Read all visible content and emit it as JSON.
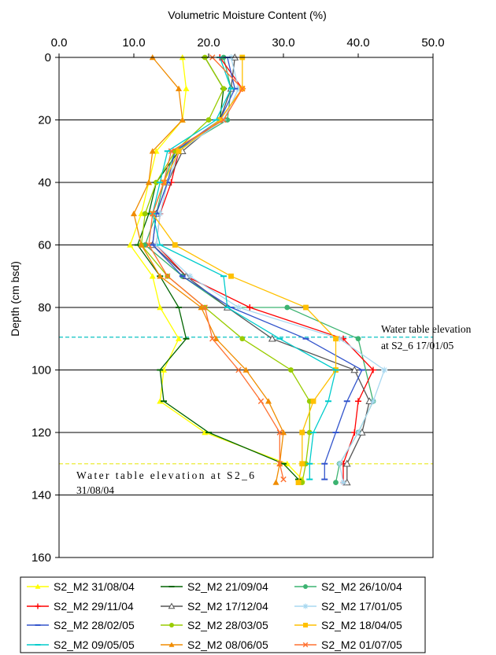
{
  "chart_data": {
    "type": "line",
    "title": "",
    "xlabel": "Volumetric Moisture Content (%)",
    "ylabel": "Depth (cm bsd)",
    "xlim": [
      0,
      50
    ],
    "ylim": [
      0,
      160
    ],
    "y_inverted": true,
    "x_axis_position": "top",
    "x_ticks": [
      "0.0",
      "10.0",
      "20.0",
      "30.0",
      "40.0",
      "50.0"
    ],
    "y_ticks": [
      "0",
      "20",
      "40",
      "60",
      "80",
      "100",
      "120",
      "140",
      "160"
    ],
    "grid": "horizontal",
    "legend_position": "bottom",
    "depths": [
      0,
      10,
      20,
      30,
      40,
      50,
      60,
      70,
      80,
      90,
      100,
      110,
      120,
      130,
      135
    ],
    "series": [
      {
        "name": "S2_M2 31/08/04",
        "color": "#ffff00",
        "marker": "triangle-up",
        "x": [
          16.5,
          17.0,
          16.5,
          13.0,
          12.0,
          11.0,
          9.5,
          12.5,
          13.5,
          16.0,
          14.0,
          13.5,
          19.5,
          30.5,
          32.5
        ],
        "depth": [
          0,
          10,
          20,
          30,
          40,
          50,
          60,
          70,
          80,
          90,
          100,
          110,
          120,
          130,
          135
        ]
      },
      {
        "name": "S2_M2 21/09/04",
        "color": "#006400",
        "marker": "dash",
        "x": [
          19.5,
          22.0,
          21.5,
          16.0,
          13.0,
          12.0,
          10.5,
          13.5,
          16.0,
          17.0,
          13.5,
          14.0,
          20.0,
          30.0,
          32.0
        ],
        "depth": [
          0,
          10,
          20,
          30,
          40,
          50,
          60,
          70,
          80,
          90,
          100,
          110,
          120,
          130,
          135
        ]
      },
      {
        "name": "S2_M2 26/10/04",
        "color": "#3cb371",
        "marker": "dot",
        "x": [
          22.0,
          23.0,
          22.5,
          15.5,
          14.0,
          13.0,
          11.5,
          16.5,
          22.5,
          30.5,
          40.0,
          42.0,
          40.0,
          37.5,
          37.0
        ],
        "depth": [
          0,
          10,
          20,
          30,
          40,
          50,
          60,
          70,
          80,
          80,
          90,
          110,
          120,
          130,
          136
        ]
      },
      {
        "name": "S2_M2 29/11/04",
        "color": "#ff0000",
        "marker": "plus",
        "x": [
          21.5,
          24.5,
          21.5,
          16.0,
          15.0,
          13.5,
          13.0,
          17.0,
          25.5,
          38.0,
          42.0,
          40.0,
          39.5,
          38.0,
          38.0
        ],
        "depth": [
          0,
          10,
          20,
          30,
          40,
          50,
          60,
          70,
          80,
          90,
          100,
          110,
          120,
          130,
          136
        ]
      },
      {
        "name": "S2_M2 17/12/04",
        "color": "#555555",
        "marker": "triangle-open",
        "x": [
          23.5,
          23.0,
          21.5,
          16.5,
          14.5,
          13.0,
          12.5,
          17.0,
          22.5,
          28.5,
          39.5,
          41.5,
          40.5,
          38.5,
          38.5
        ],
        "depth": [
          0,
          10,
          20,
          30,
          40,
          50,
          60,
          70,
          80,
          90,
          100,
          110,
          120,
          130,
          136
        ]
      },
      {
        "name": "S2_M2 17/01/05",
        "color": "#a8d8f0",
        "marker": "star",
        "x": [
          23.0,
          24.0,
          22.0,
          16.0,
          14.5,
          13.5,
          13.0,
          17.5,
          24.0,
          37.5,
          43.5,
          42.0,
          40.0,
          37.5,
          38.0
        ],
        "depth": [
          0,
          10,
          20,
          30,
          40,
          50,
          60,
          70,
          80,
          90,
          100,
          110,
          120,
          130,
          136
        ]
      },
      {
        "name": "S2_M2 28/02/05",
        "color": "#3355cc",
        "marker": "dash",
        "x": [
          22.5,
          23.5,
          21.5,
          15.5,
          14.5,
          13.0,
          12.5,
          16.5,
          23.0,
          33.0,
          40.5,
          38.5,
          37.0,
          35.5,
          35.5
        ],
        "depth": [
          0,
          10,
          20,
          30,
          40,
          50,
          60,
          70,
          80,
          90,
          100,
          110,
          120,
          130,
          135
        ]
      },
      {
        "name": "S2_M2 28/03/05",
        "color": "#99cc00",
        "marker": "dot",
        "x": [
          19.5,
          22.0,
          20.0,
          15.5,
          13.0,
          11.5,
          11.0,
          14.5,
          19.5,
          24.5,
          31.0,
          33.5,
          33.5,
          33.0,
          32.5
        ],
        "depth": [
          0,
          10,
          20,
          30,
          40,
          50,
          60,
          70,
          80,
          90,
          100,
          110,
          120,
          130,
          136
        ]
      },
      {
        "name": "S2_M2 18/04/05",
        "color": "#ffc000",
        "marker": "square",
        "x": [
          24.5,
          24.5,
          21.5,
          16.0,
          14.0,
          12.5,
          15.5,
          23.0,
          33.0,
          37.0,
          37.0,
          34.0,
          32.5,
          32.5,
          32.0
        ],
        "depth": [
          0,
          10,
          20,
          30,
          40,
          50,
          60,
          70,
          80,
          90,
          100,
          110,
          120,
          130,
          136
        ]
      },
      {
        "name": "S2_M2 09/05/05",
        "color": "#00cccc",
        "marker": "dash",
        "x": [
          21.5,
          23.0,
          21.0,
          14.5,
          13.5,
          12.5,
          13.5,
          22.0,
          22.5,
          29.5,
          37.0,
          36.0,
          34.0,
          33.5,
          33.5
        ],
        "depth": [
          0,
          10,
          20,
          30,
          40,
          50,
          60,
          70,
          80,
          90,
          100,
          110,
          120,
          130,
          135
        ]
      },
      {
        "name": "S2_M2 08/06/05",
        "color": "#f08c00",
        "marker": "triangle-up",
        "x": [
          12.5,
          16.0,
          16.5,
          12.5,
          12.0,
          10.0,
          11.0,
          13.5,
          19.0,
          21.0,
          25.0,
          28.0,
          30.0,
          29.5,
          29.0
        ],
        "depth": [
          0,
          10,
          20,
          30,
          40,
          50,
          60,
          70,
          80,
          90,
          100,
          110,
          120,
          130,
          136
        ]
      },
      {
        "name": "S2_M2 01/07/05",
        "color": "#ff7030",
        "marker": "cross",
        "x": [
          20.5,
          24.5,
          22.0,
          15.0,
          14.0,
          12.5,
          12.0,
          14.5,
          19.5,
          20.5,
          24.0,
          27.0,
          29.5,
          29.5,
          30.0
        ],
        "depth": [
          0,
          10,
          20,
          30,
          40,
          50,
          60,
          70,
          80,
          90,
          100,
          110,
          120,
          130,
          135
        ]
      }
    ],
    "reference_lines": [
      {
        "depth": 89.5,
        "color": "#33cccc",
        "label": "Water table elevation at S2_6 17/01/05"
      },
      {
        "depth": 130,
        "color": "#eeee55",
        "label": "Water table elevation at S2_6 31/08/04"
      }
    ],
    "annotations": {
      "upper_line1": "Water table elevation",
      "upper_line2": "at S2_6 17/01/05",
      "lower_line1": "Water table elevation at S2_6",
      "lower_line2": "31/08/04"
    }
  }
}
